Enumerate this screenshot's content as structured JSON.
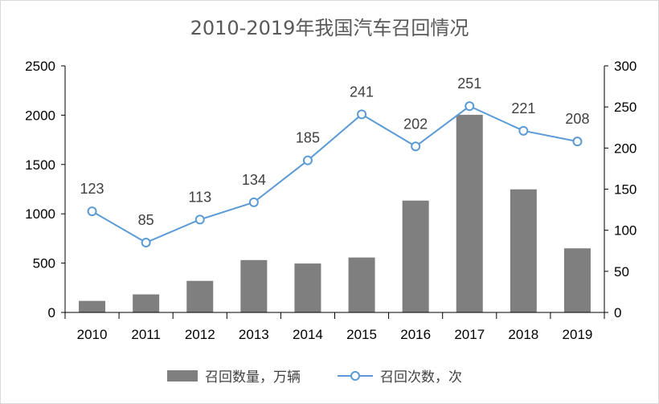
{
  "chart_data": {
    "type": "bar+line",
    "title": "2010-2019年我国汽车召回情况",
    "categories": [
      "2010",
      "2011",
      "2012",
      "2013",
      "2014",
      "2015",
      "2016",
      "2017",
      "2018",
      "2019"
    ],
    "series": [
      {
        "name": "召回数量，万辆",
        "type": "bar",
        "axis": "left",
        "color": "#7f7f7f",
        "values": [
          117,
          183,
          320,
          531,
          496,
          557,
          1134,
          2004,
          1248,
          650
        ]
      },
      {
        "name": "召回次数，次",
        "type": "line",
        "axis": "right",
        "color": "#5b9bd5",
        "values": [
          123,
          85,
          113,
          134,
          185,
          241,
          202,
          251,
          221,
          208
        ],
        "data_labels": [
          "123",
          "85",
          "113",
          "134",
          "185",
          "241",
          "202",
          "251",
          "221",
          "208"
        ]
      }
    ],
    "y_left": {
      "lim": [
        0,
        2500
      ],
      "ticks": [
        "0",
        "500",
        "1000",
        "1500",
        "2000",
        "2500"
      ]
    },
    "y_right": {
      "lim": [
        0,
        300
      ],
      "ticks": [
        "0",
        "50",
        "100",
        "150",
        "200",
        "250",
        "300"
      ]
    },
    "grid": false,
    "legend": "bottom"
  }
}
